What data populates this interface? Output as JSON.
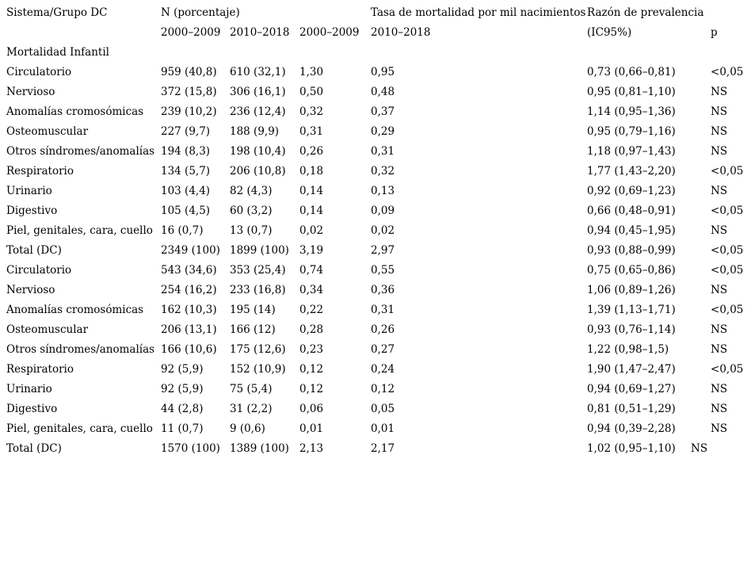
{
  "table": {
    "columns": {
      "sistema": "Sistema/Grupo DC",
      "n_group": "N (porcentaje)",
      "tasa_group": "Tasa de mortalidad por mil nacimientos",
      "razon_group": "Razón de prevalencia",
      "period_1": "2000–2009",
      "period_2": "2010–2018",
      "ic": "(IC95%)",
      "p": "p"
    },
    "section": "Mortalidad Infantil",
    "rows": [
      [
        "Circulatorio",
        "959 (40,8)",
        "610 (32,1)",
        "1,30",
        "0,95",
        "0,73 (0,66–0,81)",
        "<0,05"
      ],
      [
        "Nervioso",
        "372 (15,8)",
        "306 (16,1)",
        "0,50",
        "0,48",
        "0,95 (0,81–1,10)",
        "NS"
      ],
      [
        "Anomalías cromosómicas",
        "239 (10,2)",
        "236 (12,4)",
        "0,32",
        "0,37",
        "1,14 (0,95–1,36)",
        "NS"
      ],
      [
        "Osteomuscular",
        "227 (9,7)",
        "188 (9,9)",
        "0,31",
        "0,29",
        "0,95 (0,79–1,16)",
        "NS"
      ],
      [
        "Otros síndromes/anomalías",
        "194 (8,3)",
        "198 (10,4)",
        "0,26",
        "0,31",
        "1,18 (0,97–1,43)",
        "NS"
      ],
      [
        "Respiratorio",
        "134 (5,7)",
        "206 (10,8)",
        "0,18",
        "0,32",
        "1,77 (1,43–2,20)",
        "<0,05"
      ],
      [
        "Urinario",
        "103 (4,4)",
        "82 (4,3)",
        "0,14",
        "0,13",
        "0,92 (0,69–1,23)",
        "NS"
      ],
      [
        "Digestivo",
        "105 (4,5)",
        "60 (3,2)",
        "0,14",
        "0,09",
        "0,66 (0,48–0,91)",
        "<0,05"
      ],
      [
        "Piel, genitales, cara, cuello",
        "16 (0,7)",
        "13 (0,7)",
        "0,02",
        "0,02",
        "0,94 (0,45–1,95)",
        "NS"
      ],
      [
        "Total (DC)",
        "2349 (100)",
        "1899 (100)",
        "3,19",
        "2,97",
        "0,93 (0,88–0,99)",
        "<0,05"
      ],
      [
        "Circulatorio",
        "543 (34,6)",
        "353 (25,4)",
        "0,74",
        "0,55",
        "0,75 (0,65–0,86)",
        "<0,05"
      ],
      [
        "Nervioso",
        "254 (16,2)",
        "233 (16,8)",
        "0,34",
        "0,36",
        "1,06 (0,89–1,26)",
        "NS"
      ],
      [
        "Anomalías cromosómicas",
        "162 (10,3)",
        "195 (14)",
        "0,22",
        "0,31",
        "1,39 (1,13–1,71)",
        "<0,05"
      ],
      [
        "Osteomuscular",
        "206 (13,1)",
        "166 (12)",
        "0,28",
        "0,26",
        "0,93 (0,76–1,14)",
        "NS"
      ],
      [
        "Otros síndromes/anomalías",
        "166 (10,6)",
        "175 (12,6)",
        "0,23",
        "0,27",
        "1,22 (0,98–1,5)",
        "NS"
      ],
      [
        "Respiratorio",
        "92 (5,9)",
        "152 (10,9)",
        "0,12",
        "0,24",
        "1,90 (1,47–2,47)",
        "<0,05"
      ],
      [
        "Urinario",
        "92 (5,9)",
        "75 (5,4)",
        "0,12",
        "0,12",
        "0,94 (0,69–1,27)",
        "NS"
      ],
      [
        "Digestivo",
        "44 (2,8)",
        "31 (2,2)",
        "0,06",
        "0,05",
        "0,81 (0,51–1,29)",
        "NS"
      ],
      [
        "Piel, genitales, cara, cuello",
        "11 (0,7)",
        "9 (0,6)",
        "0,01",
        "0,01",
        "0,94 (0,39–2,28)",
        "NS"
      ],
      [
        "Total (DC)",
        "1570 (100)",
        "1389 (100)",
        "2,13",
        "2,17",
        "1,02 (0,95–1,10)",
        "NS"
      ]
    ]
  },
  "colors": {
    "text": "#000000",
    "background": "#ffffff"
  }
}
